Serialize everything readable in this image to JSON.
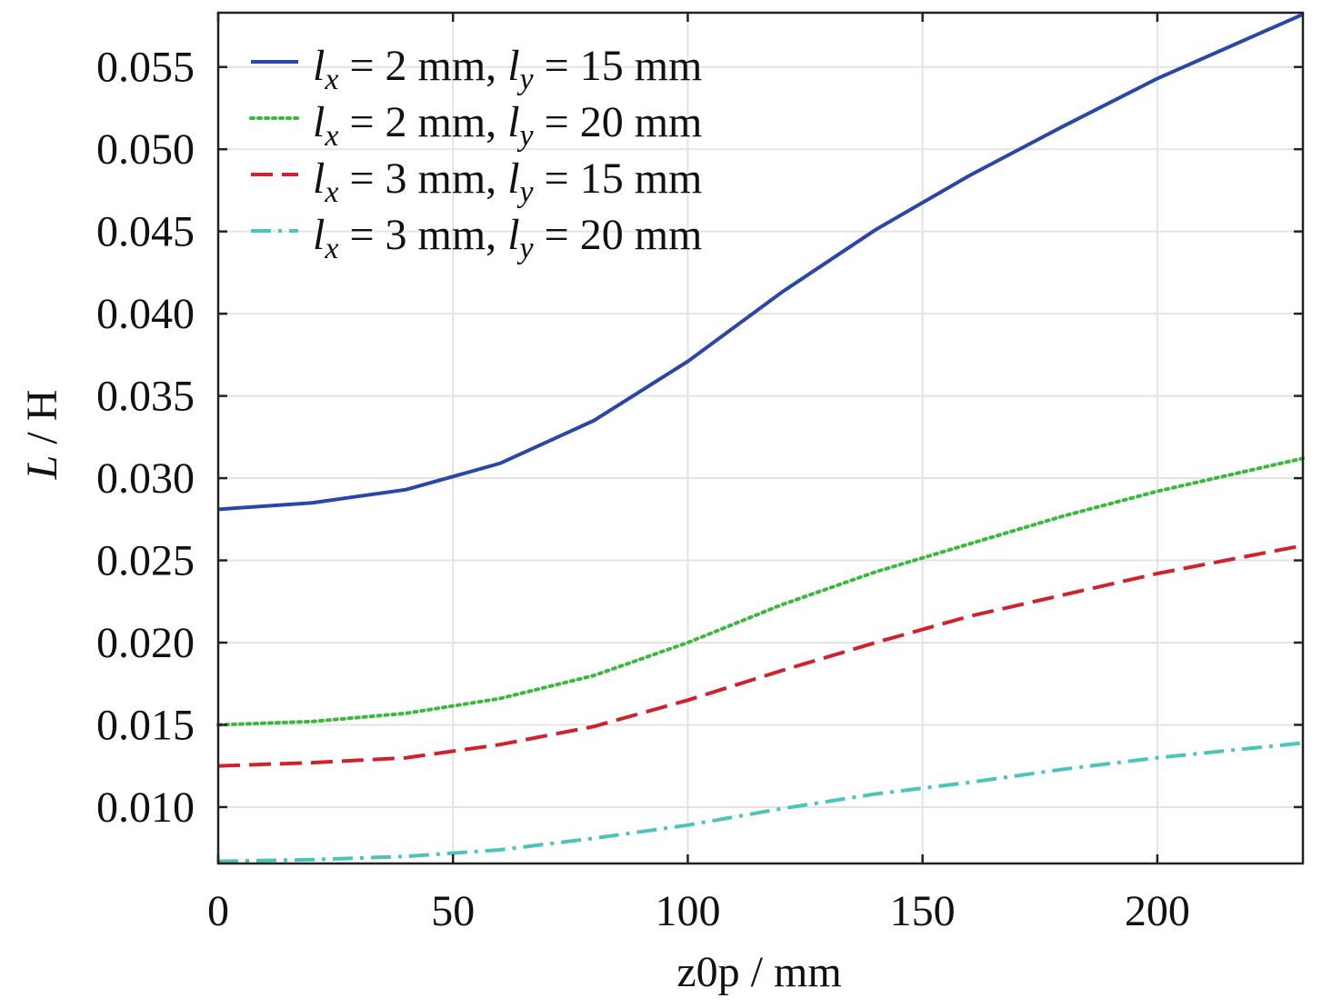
{
  "chart_data": {
    "type": "line",
    "title": "",
    "xlabel": "z0p / mm",
    "ylabel": "L / H",
    "xlim": [
      0,
      231
    ],
    "ylim": [
      0.00657,
      0.0583
    ],
    "xticks": [
      0,
      50,
      100,
      150,
      200
    ],
    "yticks": [
      0.01,
      0.015,
      0.02,
      0.025,
      0.03,
      0.035,
      0.04,
      0.045,
      0.05,
      0.055
    ],
    "xtick_labels": [
      "0",
      "50",
      "100",
      "150",
      "200"
    ],
    "ytick_labels": [
      "0.010",
      "0.015",
      "0.020",
      "0.025",
      "0.030",
      "0.035",
      "0.040",
      "0.045",
      "0.050",
      "0.055"
    ],
    "grid": true,
    "legend_placement": "top-left",
    "x": [
      0,
      20,
      40,
      60,
      80,
      100,
      120,
      140,
      160,
      180,
      200,
      231
    ],
    "series": [
      {
        "name": "lx = 2 mm, ly = 15 mm",
        "color": "#2a47a8",
        "style": "solid",
        "values": [
          0.0281,
          0.0285,
          0.0293,
          0.0309,
          0.0335,
          0.0371,
          0.0413,
          0.0451,
          0.0484,
          0.0514,
          0.0543,
          0.0582
        ]
      },
      {
        "name": "lx = 2 mm, ly = 20 mm",
        "color": "#3cb83c",
        "style": "dotted",
        "values": [
          0.015,
          0.0152,
          0.0157,
          0.0166,
          0.018,
          0.02,
          0.0223,
          0.0243,
          0.026,
          0.0277,
          0.0292,
          0.0312
        ]
      },
      {
        "name": "lx = 3 mm, ly = 15 mm",
        "color": "#d0222c",
        "style": "dashed",
        "values": [
          0.0125,
          0.0127,
          0.013,
          0.0138,
          0.0149,
          0.0165,
          0.0183,
          0.02,
          0.0216,
          0.0229,
          0.0242,
          0.0259
        ]
      },
      {
        "name": "lx = 3 mm, ly = 20 mm",
        "color": "#4cc4bc",
        "style": "dashdot",
        "values": [
          0.0067,
          0.0068,
          0.007,
          0.0074,
          0.0081,
          0.0089,
          0.0099,
          0.0108,
          0.0115,
          0.0123,
          0.013,
          0.0139
        ]
      }
    ]
  }
}
